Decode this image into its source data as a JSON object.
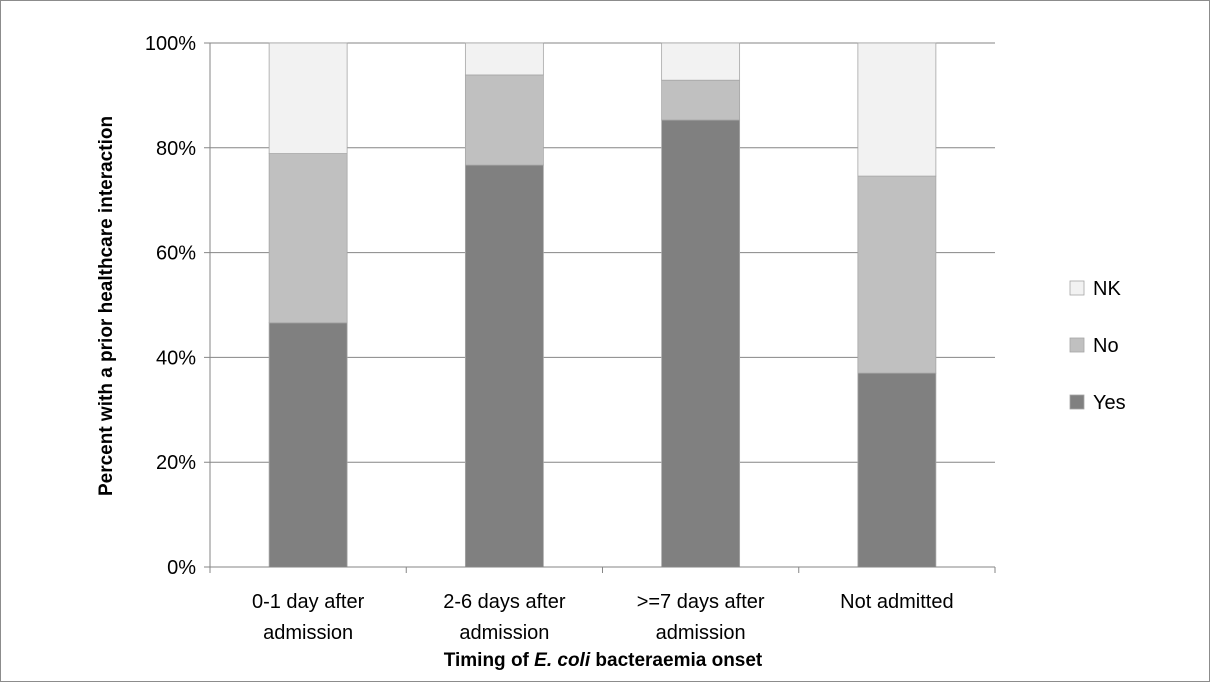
{
  "chart_data": {
    "type": "bar",
    "stacked": true,
    "categories": [
      [
        "0-1 day after",
        "admission"
      ],
      [
        "2-6 days after",
        "admission"
      ],
      [
        ">=7 days after",
        "admission"
      ],
      [
        "Not admitted"
      ]
    ],
    "series": [
      {
        "name": "Yes",
        "color": "#808080",
        "values": [
          46.6,
          76.7,
          85.3,
          37.0
        ]
      },
      {
        "name": "No",
        "color": "#c0c0c0",
        "values": [
          32.3,
          17.2,
          7.6,
          37.6
        ]
      },
      {
        "name": "NK",
        "color": "#f2f2f2",
        "values": [
          21.1,
          6.1,
          7.1,
          25.4
        ]
      }
    ],
    "ylim": [
      0,
      100
    ],
    "yticks": [
      0,
      20,
      40,
      60,
      80,
      100
    ],
    "ytick_labels": [
      "0%",
      "20%",
      "40%",
      "60%",
      "80%",
      "100%"
    ],
    "ylabel": "Percent with a prior healthcare interaction",
    "xlabel_parts": [
      {
        "text": "Timing of ",
        "italic": false
      },
      {
        "text": "E. coli",
        "italic": true
      },
      {
        "text": " bacteraemia onset",
        "italic": false
      }
    ],
    "grid": true,
    "legend_position": "right",
    "legend_order": [
      "NK",
      "No",
      "Yes"
    ]
  }
}
